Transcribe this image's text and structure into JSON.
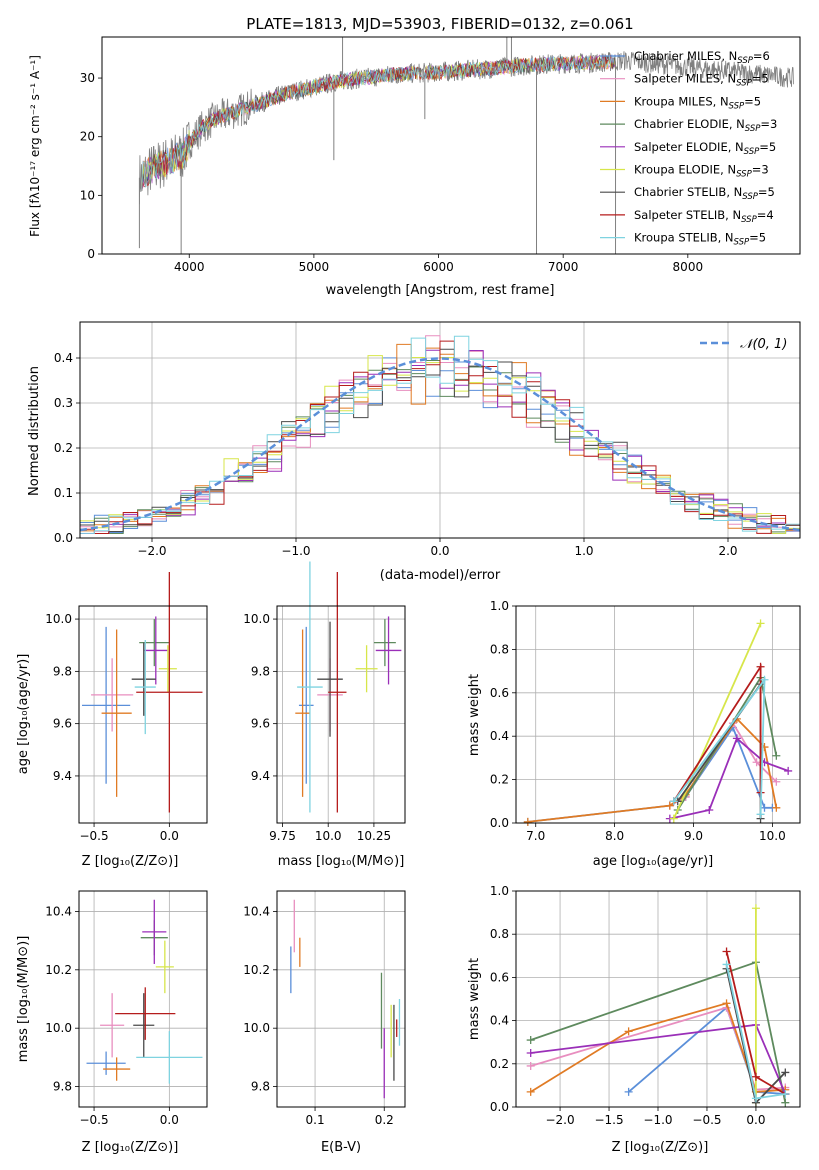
{
  "figure": {
    "title": "PLATE=1813, MJD=53903, FIBERID=0132, z=0.061"
  },
  "series": [
    {
      "name": "Chabrier MILES",
      "nssp": "6",
      "color": "#5b8fd9"
    },
    {
      "name": "Salpeter MILES",
      "nssp": "5",
      "color": "#e88ebf"
    },
    {
      "name": "Kroupa MILES",
      "nssp": "5",
      "color": "#e07b24"
    },
    {
      "name": "Chabrier ELODIE",
      "nssp": "3",
      "color": "#5e8a5e"
    },
    {
      "name": "Salpeter ELODIE",
      "nssp": "5",
      "color": "#9a2fb8"
    },
    {
      "name": "Kroupa ELODIE",
      "nssp": "3",
      "color": "#d7e64a"
    },
    {
      "name": "Chabrier STELIB",
      "nssp": "5",
      "color": "#4a4a4a"
    },
    {
      "name": "Salpeter STELIB",
      "nssp": "4",
      "color": "#b51c1c"
    },
    {
      "name": "Kroupa STELIB",
      "nssp": "5",
      "color": "#7fd3e0"
    }
  ],
  "chart_data": [
    {
      "id": "spectrum",
      "type": "line",
      "xlabel": "wavelength [Angstrom, rest frame]",
      "ylabel": "Flux [fλ10⁻¹⁷ erg cm⁻² s⁻¹ A⁻¹]",
      "xlim": [
        3300,
        8900
      ],
      "ylim": [
        0,
        37
      ],
      "xticks": [
        4000,
        5000,
        6000,
        7000,
        8000
      ],
      "yticks": [
        0,
        10,
        20,
        30
      ],
      "data_color": "#808080",
      "continuum": {
        "x": [
          3600,
          3700,
          3800,
          3900,
          3950,
          4000,
          4100,
          4200,
          4400,
          4600,
          4800,
          5000,
          5200,
          5400,
          5600,
          5800,
          6000,
          6200,
          6400,
          6600,
          6800,
          7000,
          7200,
          7400,
          7500
        ],
        "y": [
          13,
          14.5,
          15.5,
          16.5,
          17,
          19,
          21.5,
          23,
          24.5,
          26,
          27.5,
          28.5,
          29.5,
          30,
          30.5,
          30.8,
          31,
          31.3,
          31.6,
          32,
          32.3,
          32.5,
          32.6,
          32.8,
          33
        ]
      },
      "data_extends_to": 8850,
      "dips": [
        {
          "x": 3600,
          "y": 1
        },
        {
          "x": 3935,
          "y": 0
        },
        {
          "x": 5160,
          "y": 16
        },
        {
          "x": 5890,
          "y": 23
        },
        {
          "x": 6786,
          "y": 0
        },
        {
          "x": 7420,
          "y": 0
        }
      ],
      "spikes": [
        {
          "x": 5230,
          "y": 37
        },
        {
          "x": 6548,
          "y": 37
        },
        {
          "x": 6585,
          "y": 37
        }
      ]
    },
    {
      "id": "residuals",
      "type": "histogram",
      "xlabel": "(data-model)/error",
      "ylabel": "Normed distribution",
      "xlim": [
        -2.5,
        2.5
      ],
      "ylim": [
        0,
        0.48
      ],
      "xticks": [
        -2,
        -1,
        0,
        1,
        2
      ],
      "yticks": [
        0.0,
        0.1,
        0.2,
        0.3,
        0.4
      ],
      "bin_width": 0.1,
      "gaussian_label": "𝒩(0, 1)",
      "gaussian_color": "#5b8fd9"
    },
    {
      "id": "age-vs-z",
      "type": "errorbar",
      "xlabel": "Z [log₁₀(Z/Z⊙)]",
      "ylabel": "age  [log₁₀(age/yr)]",
      "xlim": [
        -0.6,
        0.25
      ],
      "ylim": [
        9.22,
        10.05
      ],
      "xticks": [
        -0.5,
        0.0
      ],
      "yticks": [
        9.4,
        9.6,
        9.8,
        10.0
      ],
      "points": [
        {
          "x": -0.42,
          "xerr": 0.16,
          "y": 9.67,
          "yerr": 0.3
        },
        {
          "x": -0.38,
          "xerr": 0.14,
          "y": 9.71,
          "yerr": 0.14
        },
        {
          "x": -0.35,
          "xerr": 0.1,
          "y": 9.64,
          "yerr": 0.32
        },
        {
          "x": -0.1,
          "xerr": 0.1,
          "y": 9.91,
          "yerr": 0.09
        },
        {
          "x": -0.09,
          "xerr": 0.08,
          "y": 9.88,
          "yerr": 0.13
        },
        {
          "x": -0.01,
          "xerr": 0.06,
          "y": 9.81,
          "yerr": 0.09
        },
        {
          "x": -0.17,
          "xerr": 0.08,
          "y": 9.77,
          "yerr": 0.14
        },
        {
          "x": 0.0,
          "xerr": 0.22,
          "y": 9.72,
          "yerr": 0.46
        },
        {
          "x": -0.16,
          "xerr": 0.07,
          "y": 9.74,
          "yerr": 0.18
        }
      ]
    },
    {
      "id": "age-vs-mass",
      "type": "errorbar",
      "xlabel": "mass [log₁₀(M/M⊙)]",
      "ylabel": "",
      "xlim": [
        9.72,
        10.42
      ],
      "ylim": [
        9.22,
        10.05
      ],
      "xticks": [
        9.75,
        10.0,
        10.25
      ],
      "yticks": [
        9.4,
        9.6,
        9.8,
        10.0
      ],
      "points": [
        {
          "x": 9.88,
          "xerr": 0.04,
          "y": 9.67,
          "yerr": 0.3
        },
        {
          "x": 10.01,
          "xerr": 0.07,
          "y": 9.71,
          "yerr": 0.14
        },
        {
          "x": 9.86,
          "xerr": 0.04,
          "y": 9.64,
          "yerr": 0.32
        },
        {
          "x": 10.31,
          "xerr": 0.06,
          "y": 9.91,
          "yerr": 0.09
        },
        {
          "x": 10.33,
          "xerr": 0.07,
          "y": 9.88,
          "yerr": 0.13
        },
        {
          "x": 10.21,
          "xerr": 0.06,
          "y": 9.81,
          "yerr": 0.09
        },
        {
          "x": 10.01,
          "xerr": 0.07,
          "y": 9.77,
          "yerr": 0.22
        },
        {
          "x": 10.05,
          "xerr": 0.05,
          "y": 9.72,
          "yerr": 0.46
        },
        {
          "x": 9.9,
          "xerr": 0.07,
          "y": 9.74,
          "yerr": 0.48
        }
      ]
    },
    {
      "id": "mass-weight-vs-age",
      "type": "line",
      "xlabel": "age  [log₁₀(age/yr)]",
      "ylabel": "mass weight",
      "xlim": [
        6.75,
        10.35
      ],
      "ylim": [
        0,
        1
      ],
      "xticks": [
        7,
        8,
        9,
        10
      ],
      "yticks": [
        0.0,
        0.2,
        0.4,
        0.6,
        0.8,
        1.0
      ],
      "series": [
        {
          "x": [
            6.9,
            8.7,
            8.9,
            9.5,
            9.9,
            10.0
          ],
          "y": [
            0.005,
            0.08,
            0.12,
            0.44,
            0.07,
            0.07
          ]
        },
        {
          "x": [
            8.7,
            8.9,
            9.5,
            9.8,
            10.05
          ],
          "y": [
            0.08,
            0.12,
            0.46,
            0.28,
            0.19
          ]
        },
        {
          "x": [
            6.9,
            8.7,
            8.9,
            9.55,
            9.9,
            10.05
          ],
          "y": [
            0.005,
            0.08,
            0.13,
            0.48,
            0.35,
            0.07
          ]
        },
        {
          "x": [
            8.8,
            9.85,
            10.05
          ],
          "y": [
            0.06,
            0.67,
            0.31
          ]
        },
        {
          "x": [
            8.7,
            9.2,
            9.55,
            9.9,
            10.2
          ],
          "y": [
            0.02,
            0.06,
            0.39,
            0.28,
            0.24
          ]
        },
        {
          "x": [
            8.75,
            9.85
          ],
          "y": [
            0.02,
            0.92
          ]
        },
        {
          "x": [
            8.8,
            9.85,
            9.85
          ],
          "y": [
            0.1,
            0.64,
            0.02
          ]
        },
        {
          "x": [
            8.75,
            9.85,
            9.85
          ],
          "y": [
            0.1,
            0.72,
            0.14
          ]
        },
        {
          "x": [
            8.75,
            9.9,
            9.85
          ],
          "y": [
            0.1,
            0.66,
            0.04
          ]
        }
      ]
    },
    {
      "id": "mass-vs-z",
      "type": "errorbar",
      "xlabel": "Z [log₁₀(Z/Z⊙)]",
      "ylabel": "mass [log₁₀(M/M⊙)]",
      "xlim": [
        -0.6,
        0.25
      ],
      "ylim": [
        9.73,
        10.47
      ],
      "xticks": [
        -0.5,
        0.0
      ],
      "yticks": [
        9.8,
        10.0,
        10.2,
        10.4
      ],
      "points": [
        {
          "x": -0.42,
          "xerr": 0.13,
          "y": 9.88,
          "yerr": 0.04
        },
        {
          "x": -0.38,
          "xerr": 0.08,
          "y": 10.01,
          "yerr": 0.11
        },
        {
          "x": -0.35,
          "xerr": 0.09,
          "y": 9.86,
          "yerr": 0.04
        },
        {
          "x": -0.1,
          "xerr": 0.09,
          "y": 10.31,
          "yerr": 0.06
        },
        {
          "x": -0.1,
          "xerr": 0.08,
          "y": 10.33,
          "yerr": 0.11
        },
        {
          "x": -0.03,
          "xerr": 0.06,
          "y": 10.21,
          "yerr": 0.09
        },
        {
          "x": -0.17,
          "xerr": 0.07,
          "y": 10.01,
          "yerr": 0.11
        },
        {
          "x": -0.16,
          "xerr": 0.2,
          "y": 10.05,
          "yerr": 0.09
        },
        {
          "x": 0.0,
          "xerr": 0.22,
          "y": 9.9,
          "yerr": 0.09
        }
      ]
    },
    {
      "id": "mass-vs-ebv",
      "type": "errorbar",
      "xlabel": "E(B-V)",
      "ylabel": "",
      "xlim": [
        0.045,
        0.23
      ],
      "ylim": [
        9.73,
        10.47
      ],
      "xticks": [
        0.1,
        0.2
      ],
      "yticks": [
        9.8,
        10.0,
        10.2,
        10.4
      ],
      "points": [
        {
          "x": 0.065,
          "xerr": 0,
          "y": 10.2,
          "yerr": 0.08
        },
        {
          "x": 0.07,
          "xerr": 0,
          "y": 10.35,
          "yerr": 0.09
        },
        {
          "x": 0.078,
          "xerr": 0,
          "y": 10.26,
          "yerr": 0.05
        },
        {
          "x": 0.196,
          "xerr": 0,
          "y": 10.06,
          "yerr": 0.13
        },
        {
          "x": 0.2,
          "xerr": 0,
          "y": 9.88,
          "yerr": 0.12
        },
        {
          "x": 0.21,
          "xerr": 0,
          "y": 9.99,
          "yerr": 0.09
        },
        {
          "x": 0.214,
          "xerr": 0,
          "y": 9.95,
          "yerr": 0.13
        },
        {
          "x": 0.218,
          "xerr": 0,
          "y": 10.0,
          "yerr": 0.03
        },
        {
          "x": 0.222,
          "xerr": 0,
          "y": 10.02,
          "yerr": 0.08
        }
      ]
    },
    {
      "id": "mass-weight-vs-z",
      "type": "line",
      "xlabel": "Z [log₁₀(Z/Z⊙)]",
      "ylabel": "mass weight",
      "xlim": [
        -2.45,
        0.45
      ],
      "ylim": [
        0,
        1
      ],
      "xticks": [
        -2.0,
        -1.5,
        -1.0,
        -0.5,
        0.0
      ],
      "yticks": [
        0.0,
        0.2,
        0.4,
        0.6,
        0.8,
        1.0
      ],
      "series": [
        {
          "x": [
            -1.3,
            -0.3,
            0.0,
            0.3
          ],
          "y": [
            0.07,
            0.46,
            0.07,
            0.06
          ]
        },
        {
          "x": [
            -2.3,
            -0.3,
            0.0,
            0.3
          ],
          "y": [
            0.19,
            0.46,
            0.08,
            0.09
          ]
        },
        {
          "x": [
            -2.3,
            -1.3,
            -0.3,
            0.0,
            0.3
          ],
          "y": [
            0.07,
            0.35,
            0.48,
            0.07,
            0.08
          ]
        },
        {
          "x": [
            -2.3,
            0.0,
            0.3
          ],
          "y": [
            0.31,
            0.67,
            0.02
          ]
        },
        {
          "x": [
            -2.3,
            0.0,
            0.3
          ],
          "y": [
            0.25,
            0.38,
            0.06
          ]
        },
        {
          "x": [
            0.0,
            0.0
          ],
          "y": [
            0.92,
            0.02
          ]
        },
        {
          "x": [
            -0.3,
            0.0,
            0.3
          ],
          "y": [
            0.64,
            0.02,
            0.16
          ]
        },
        {
          "x": [
            -0.3,
            0.0,
            0.3
          ],
          "y": [
            0.72,
            0.14,
            0.06
          ]
        },
        {
          "x": [
            -0.3,
            0.0,
            0.3
          ],
          "y": [
            0.66,
            0.04,
            0.06
          ]
        }
      ]
    }
  ]
}
